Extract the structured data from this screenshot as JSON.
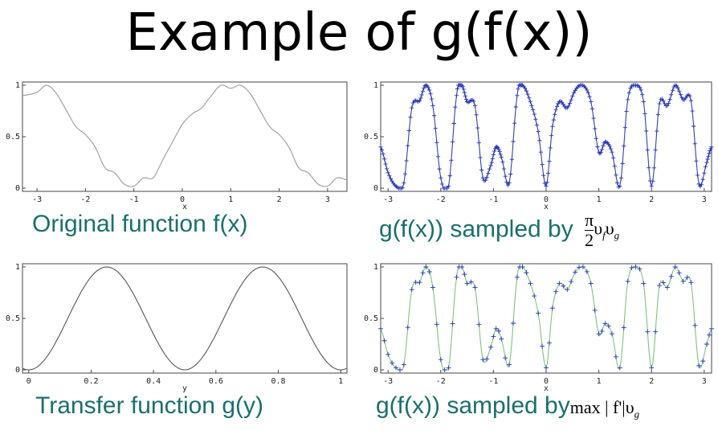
{
  "title": "Example of g(f(x))",
  "captions": {
    "tl": "Original function f(x)",
    "tr_text": "g(f(x)) sampled by",
    "tr_formula": {
      "num": "π",
      "den": "2",
      "rest": "υ",
      "sub1": "f",
      "rest2": "υ",
      "sub2": "g"
    },
    "bl": "Transfer function g(y)",
    "br_text": "g(f(x)) sampled by",
    "br_formula": {
      "pre": "max | f'|υ",
      "sub": "g"
    }
  },
  "colors": {
    "gray_line": "#9a9a9a",
    "dark_line": "#555555",
    "blue": "#2233bb",
    "green": "#7cc47c",
    "caption": "#1a6f6f"
  },
  "chart_data": [
    {
      "id": "tl",
      "type": "line",
      "title": "Original function f(x)",
      "xlabel": "x",
      "ylabel": "",
      "xlim": [
        -3.3,
        3.4
      ],
      "ylim": [
        0,
        1
      ],
      "xticks": [
        "-3",
        "-2",
        "-1",
        "0",
        "1",
        "2",
        "3"
      ],
      "xtick_values": [
        -3,
        -2,
        -1,
        0,
        1,
        2,
        3
      ],
      "yticks": [
        "0",
        "0.5",
        "1"
      ],
      "ytick_values": [
        0,
        0.5,
        1
      ],
      "series": [
        {
          "style": "gray",
          "x": [
            -3.3,
            -3.0,
            -2.8,
            -2.6,
            -2.4,
            -2.2,
            -2.0,
            -1.8,
            -1.6,
            -1.4,
            -1.2,
            -1.0,
            -0.8,
            -0.6,
            -0.4,
            -0.2,
            0.0,
            0.2,
            0.4,
            0.6,
            0.8,
            1.0,
            1.2,
            1.4,
            1.6,
            1.8,
            2.0,
            2.2,
            2.4,
            2.6,
            2.8,
            3.0,
            3.2,
            3.4
          ],
          "y": [
            0.9,
            0.93,
            1.0,
            0.92,
            0.76,
            0.6,
            0.52,
            0.4,
            0.2,
            0.15,
            0.04,
            0.02,
            0.1,
            0.1,
            0.28,
            0.45,
            0.62,
            0.72,
            0.78,
            0.9,
            1.0,
            0.97,
            1.0,
            0.92,
            0.76,
            0.6,
            0.52,
            0.4,
            0.2,
            0.15,
            0.04,
            0.02,
            0.1,
            0.08
          ]
        }
      ]
    },
    {
      "id": "tr",
      "type": "line",
      "title": "",
      "xlabel": "x",
      "ylabel": "",
      "xlim": [
        -3.14,
        3.14
      ],
      "ylim": [
        0,
        1
      ],
      "xticks": [
        "-3",
        "-2",
        "-1",
        "0",
        "1",
        "2",
        "3"
      ],
      "xtick_values": [
        -3,
        -2,
        -1,
        0,
        1,
        2,
        3
      ],
      "yticks": [
        "0",
        "0.5",
        "1"
      ],
      "ytick_values": [
        0,
        0.5,
        1
      ],
      "series": [
        {
          "style": "blue-dense",
          "x": [
            -3.14,
            -3.0,
            -2.85,
            -2.7,
            -2.55,
            -2.4,
            -2.28,
            -2.15,
            -2.0,
            -1.85,
            -1.7,
            -1.6,
            -1.5,
            -1.35,
            -1.2,
            -1.05,
            -0.95,
            -0.85,
            -0.7,
            -0.55,
            -0.45,
            -0.3,
            -0.15,
            0.0,
            0.12,
            0.25,
            0.4,
            0.55,
            0.7,
            0.85,
            1.0,
            1.12,
            1.25,
            1.4,
            1.55,
            1.7,
            1.85,
            2.0,
            2.15,
            2.3,
            2.45,
            2.6,
            2.75,
            2.9,
            3.05,
            3.14
          ],
          "y": [
            0.4,
            0.15,
            0.02,
            0.05,
            0.78,
            0.85,
            1.0,
            0.8,
            0.1,
            0.02,
            0.9,
            1.0,
            0.84,
            0.8,
            0.1,
            0.22,
            0.4,
            0.3,
            0.05,
            0.9,
            1.0,
            0.84,
            0.55,
            0.02,
            0.6,
            0.84,
            0.78,
            0.95,
            1.0,
            0.84,
            0.35,
            0.45,
            0.35,
            0.02,
            0.86,
            1.0,
            0.84,
            0.02,
            0.82,
            0.8,
            1.0,
            0.86,
            0.85,
            0.04,
            0.25,
            0.4
          ]
        }
      ]
    },
    {
      "id": "bl",
      "type": "line",
      "title": "Transfer function g(y)",
      "xlabel": "y",
      "ylabel": "",
      "xlim": [
        -0.02,
        1.02
      ],
      "ylim": [
        0,
        1
      ],
      "xticks": [
        "0",
        "0.2",
        "0.4",
        "0.6",
        "0.8",
        "1"
      ],
      "xtick_values": [
        0,
        0.2,
        0.4,
        0.6,
        0.8,
        1
      ],
      "yticks": [
        "0",
        "0.5",
        "1"
      ],
      "ytick_values": [
        0,
        0.5,
        1
      ],
      "series": [
        {
          "style": "dark",
          "formula": "0.5-0.5cos(4πy)"
        }
      ]
    },
    {
      "id": "br",
      "type": "line",
      "title": "",
      "xlabel": "x",
      "ylabel": "",
      "xlim": [
        -3.14,
        3.14
      ],
      "ylim": [
        0,
        1
      ],
      "xticks": [
        "-3",
        "-2",
        "-1",
        "0",
        "1",
        "2",
        "3"
      ],
      "xtick_values": [
        -3,
        -2,
        -1,
        0,
        1,
        2,
        3
      ],
      "yticks": [
        "0",
        "0.5",
        "1"
      ],
      "ytick_values": [
        0,
        0.5,
        1
      ],
      "series": [
        {
          "style": "green-sparse",
          "x": [
            -3.14,
            -3.0,
            -2.85,
            -2.7,
            -2.55,
            -2.4,
            -2.28,
            -2.15,
            -2.0,
            -1.85,
            -1.7,
            -1.6,
            -1.5,
            -1.35,
            -1.2,
            -1.05,
            -0.95,
            -0.85,
            -0.7,
            -0.55,
            -0.45,
            -0.3,
            -0.15,
            0.0,
            0.12,
            0.25,
            0.4,
            0.55,
            0.7,
            0.85,
            1.0,
            1.12,
            1.25,
            1.4,
            1.55,
            1.7,
            1.85,
            2.0,
            2.15,
            2.3,
            2.45,
            2.6,
            2.75,
            2.9,
            3.05,
            3.14
          ],
          "y": [
            0.4,
            0.15,
            0.02,
            0.05,
            0.78,
            0.85,
            1.0,
            0.8,
            0.1,
            0.02,
            0.9,
            1.0,
            0.84,
            0.8,
            0.1,
            0.22,
            0.4,
            0.3,
            0.05,
            0.9,
            1.0,
            0.84,
            0.55,
            0.02,
            0.6,
            0.84,
            0.78,
            0.95,
            1.0,
            0.84,
            0.35,
            0.45,
            0.35,
            0.02,
            0.86,
            1.0,
            0.84,
            0.02,
            0.82,
            0.8,
            1.0,
            0.86,
            0.85,
            0.04,
            0.25,
            0.4
          ]
        }
      ]
    }
  ]
}
